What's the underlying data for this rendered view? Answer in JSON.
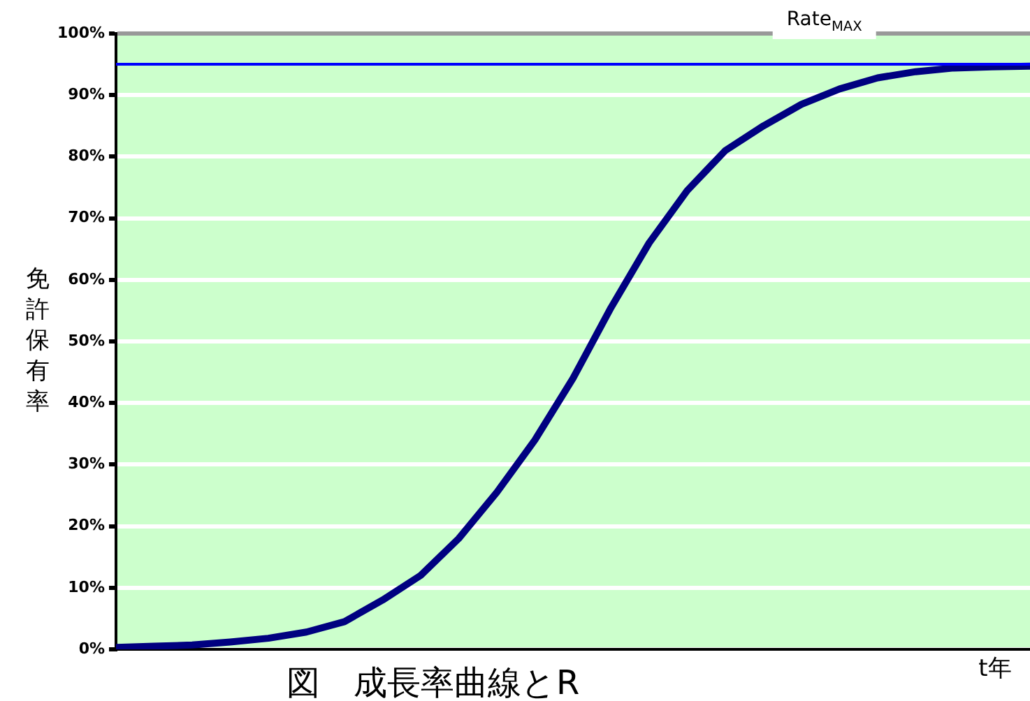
{
  "chart_data": {
    "type": "line",
    "title": "図　成長率曲線とR",
    "ylabel": "免許保有率",
    "xlabel": "t年",
    "categories": [
      null,
      null,
      null,
      null,
      null,
      null,
      null,
      null,
      null,
      null,
      null,
      null,
      null,
      null,
      null,
      null,
      null,
      null,
      null,
      null,
      null,
      null,
      null,
      null,
      null
    ],
    "series": [
      {
        "color": "#000080",
        "values": [
          0.3,
          0.5,
          0.7,
          1.2,
          1.8,
          2.8,
          4.5,
          8,
          12,
          18,
          25.5,
          34,
          44,
          55.5,
          66,
          74.5,
          81,
          85,
          88.5,
          91,
          92.8,
          93.8,
          94.4,
          94.6,
          94.7
        ]
      }
    ],
    "ylim": [
      0,
      100
    ],
    "yticks": [
      {
        "value": 0,
        "label": "0%"
      },
      {
        "value": 10,
        "label": "10%"
      },
      {
        "value": 20,
        "label": "20%"
      },
      {
        "value": 30,
        "label": "30%"
      },
      {
        "value": 40,
        "label": "40%"
      },
      {
        "value": 50,
        "label": "50%"
      },
      {
        "value": 60,
        "label": "60%"
      },
      {
        "value": 70,
        "label": "70%"
      },
      {
        "value": 80,
        "label": "80%"
      },
      {
        "value": 90,
        "label": "90%"
      },
      {
        "value": 100,
        "label": "100%"
      }
    ],
    "ref_lines": [
      {
        "axis": "y",
        "value": 95,
        "label": "Rate$_{MAX}$",
        "color": "#0000ff"
      }
    ],
    "grid": "y",
    "legend": false,
    "marker": "none",
    "line_style": "solid",
    "tick_labels": "y"
  }
}
